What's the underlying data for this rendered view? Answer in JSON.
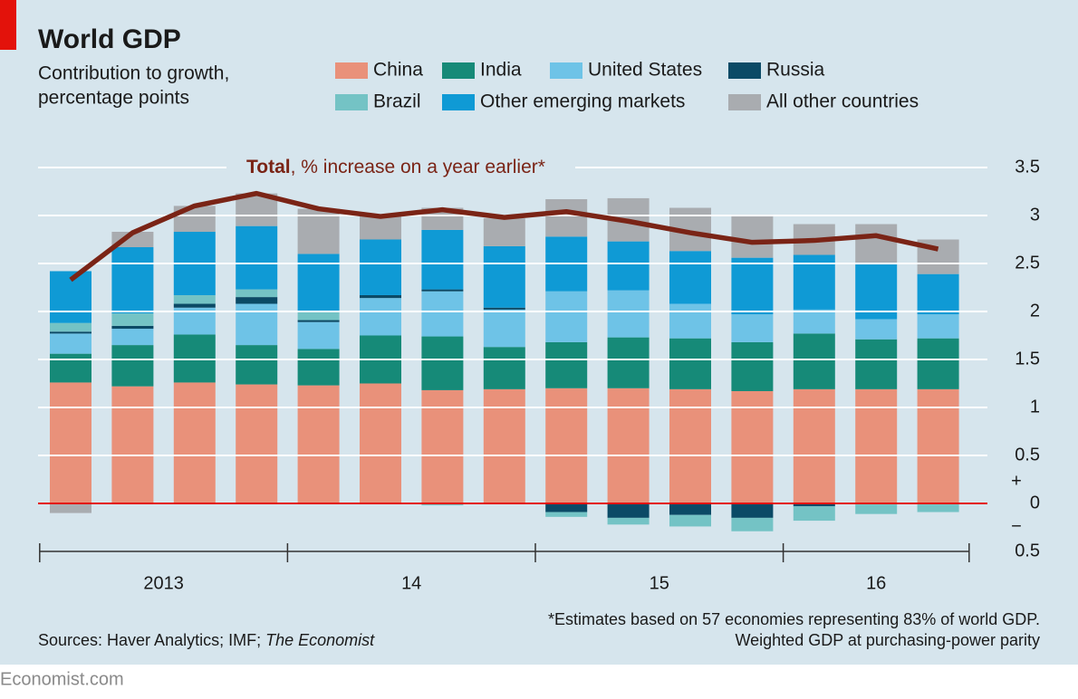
{
  "chart_data": {
    "type": "stacked-bar-line",
    "title": "World GDP",
    "subtitle": [
      "Contribution to growth,",
      "percentage points"
    ],
    "categories": [
      null,
      null,
      null,
      null,
      null,
      null,
      null,
      null,
      null,
      null,
      null,
      null,
      null,
      null,
      null
    ],
    "year_labels": [
      "2013",
      "14",
      "15",
      "16"
    ],
    "series": [
      {
        "name": "China",
        "color": "#e9917a",
        "values": [
          1.26,
          1.22,
          1.26,
          1.24,
          1.23,
          1.25,
          1.18,
          1.19,
          1.2,
          1.2,
          1.19,
          1.17,
          1.19,
          1.19,
          1.19
        ]
      },
      {
        "name": "India",
        "color": "#168a78",
        "values": [
          0.3,
          0.43,
          0.5,
          0.41,
          0.38,
          0.5,
          0.56,
          0.44,
          0.48,
          0.53,
          0.53,
          0.51,
          0.58,
          0.52,
          0.53
        ]
      },
      {
        "name": "United States",
        "color": "#6ec3e7",
        "values": [
          0.21,
          0.17,
          0.28,
          0.43,
          0.28,
          0.39,
          0.47,
          0.39,
          0.53,
          0.49,
          0.36,
          0.29,
          0.25,
          0.21,
          0.25
        ]
      },
      {
        "name": "Russia",
        "color": "#0b4a66",
        "values": [
          0.02,
          0.03,
          0.04,
          0.07,
          0.02,
          0.03,
          0.02,
          0.02,
          -0.09,
          -0.15,
          -0.12,
          -0.15,
          -0.03,
          -0.01,
          -0.01
        ]
      },
      {
        "name": "Brazil",
        "color": "#74c3c5",
        "values": [
          0.09,
          0.13,
          0.09,
          0.08,
          0.09,
          0,
          -0.02,
          0,
          -0.05,
          -0.07,
          -0.12,
          -0.14,
          -0.15,
          -0.1,
          -0.08
        ]
      },
      {
        "name": "Other emerging markets",
        "color": "#0f9ad5",
        "values": [
          0.54,
          0.69,
          0.66,
          0.66,
          0.6,
          0.58,
          0.62,
          0.64,
          0.57,
          0.51,
          0.55,
          0.59,
          0.57,
          0.57,
          0.42
        ]
      },
      {
        "name": "All other countries",
        "color": "#a9acb0",
        "values": [
          -0.1,
          0.16,
          0.27,
          0.34,
          0.47,
          0.24,
          0.23,
          0.29,
          0.39,
          0.45,
          0.45,
          0.43,
          0.32,
          0.42,
          0.36
        ]
      }
    ],
    "line": {
      "name": "Total",
      "annotation": ", % increase on a year earlier*",
      "color": "#7a2416",
      "values": [
        2.33,
        2.82,
        3.1,
        3.23,
        3.07,
        2.99,
        3.06,
        2.98,
        3.04,
        2.94,
        2.82,
        2.72,
        2.74,
        2.79,
        2.65
      ]
    },
    "ylim": [
      -0.5,
      3.5
    ],
    "yticks": [
      {
        "value": -0.5,
        "label": "0.5"
      },
      0,
      0.5,
      1.0,
      1.5,
      2.0,
      2.5,
      3.0,
      3.5
    ],
    "axis_signs": [
      "+",
      "−"
    ],
    "grid": true,
    "footnote": [
      "*Estimates based on 57 economies representing 83% of world GDP.",
      "Weighted GDP at purchasing-power parity"
    ],
    "source": "Sources: Haver Analytics; IMF;",
    "source_italic": "The Economist",
    "brand": "Economist.com"
  }
}
